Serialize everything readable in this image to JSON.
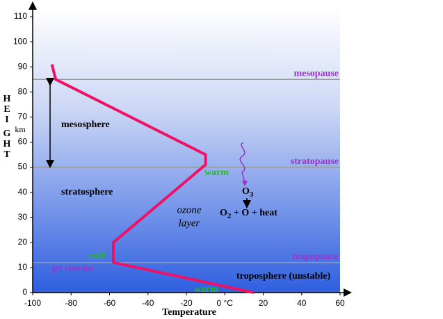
{
  "chart_data": {
    "type": "line",
    "x_label": "Temperature",
    "y_label_letters": [
      "H",
      "E",
      "I",
      "G",
      "H",
      "T"
    ],
    "y_unit": "km",
    "xlim": [
      -100,
      60
    ],
    "ylim": [
      0,
      110
    ],
    "xticks": [
      -100,
      -80,
      -60,
      -40,
      -20,
      {
        "value": 0,
        "label": "0 °C"
      },
      20,
      40,
      60
    ],
    "yticks": [
      0,
      10,
      20,
      30,
      40,
      50,
      60,
      70,
      80,
      90,
      100,
      110
    ],
    "series": [
      {
        "color": "#ee1166",
        "x": [
          -90,
          -88,
          -10,
          -10,
          -58,
          -58,
          15
        ],
        "values": [
          91,
          85,
          55,
          51,
          20,
          12,
          0
        ]
      }
    ],
    "boundaries": [
      {
        "label": "mesopause",
        "value": 85
      },
      {
        "label": "stratopause",
        "value": 50
      },
      {
        "label": "tropopause",
        "value": 12
      }
    ],
    "annotations": {
      "mesosphere": "mesosphere",
      "stratosphere": "stratosphere",
      "troposphere": "troposphere (unstable)",
      "jet_stream": "jet stream",
      "warm_top": "warm",
      "cold": "cold",
      "warm_bottom": "warm",
      "ozone_1": "ozone",
      "ozone_2": "layer"
    },
    "reaction": {
      "reactant": "O",
      "reactant_sub": "3",
      "product": "O",
      "product_sub": "2",
      "product_rest": " + O + heat"
    }
  }
}
